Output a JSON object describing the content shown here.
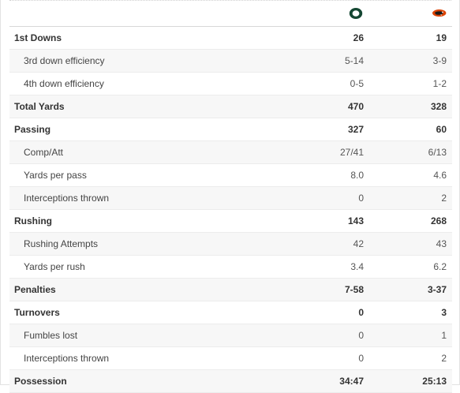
{
  "teams": {
    "home": {
      "icon": "oregon-o-logo-icon",
      "color": "#154733"
    },
    "away": {
      "icon": "oregon-state-beaver-logo-icon",
      "color": "#dc4405"
    }
  },
  "rows": [
    {
      "label": "1st Downs",
      "home": "26",
      "away": "19",
      "type": "main"
    },
    {
      "label": "3rd down efficiency",
      "home": "5-14",
      "away": "3-9",
      "type": "sub"
    },
    {
      "label": "4th down efficiency",
      "home": "0-5",
      "away": "1-2",
      "type": "sub"
    },
    {
      "label": "Total Yards",
      "home": "470",
      "away": "328",
      "type": "main"
    },
    {
      "label": "Passing",
      "home": "327",
      "away": "60",
      "type": "main"
    },
    {
      "label": "Comp/Att",
      "home": "27/41",
      "away": "6/13",
      "type": "sub"
    },
    {
      "label": "Yards per pass",
      "home": "8.0",
      "away": "4.6",
      "type": "sub"
    },
    {
      "label": "Interceptions thrown",
      "home": "0",
      "away": "2",
      "type": "sub"
    },
    {
      "label": "Rushing",
      "home": "143",
      "away": "268",
      "type": "main"
    },
    {
      "label": "Rushing Attempts",
      "home": "42",
      "away": "43",
      "type": "sub"
    },
    {
      "label": "Yards per rush",
      "home": "3.4",
      "away": "6.2",
      "type": "sub"
    },
    {
      "label": "Penalties",
      "home": "7-58",
      "away": "3-37",
      "type": "main"
    },
    {
      "label": "Turnovers",
      "home": "0",
      "away": "3",
      "type": "main"
    },
    {
      "label": "Fumbles lost",
      "home": "0",
      "away": "1",
      "type": "sub"
    },
    {
      "label": "Interceptions thrown",
      "home": "0",
      "away": "2",
      "type": "sub"
    },
    {
      "label": "Possession",
      "home": "34:47",
      "away": "25:13",
      "type": "main"
    }
  ]
}
